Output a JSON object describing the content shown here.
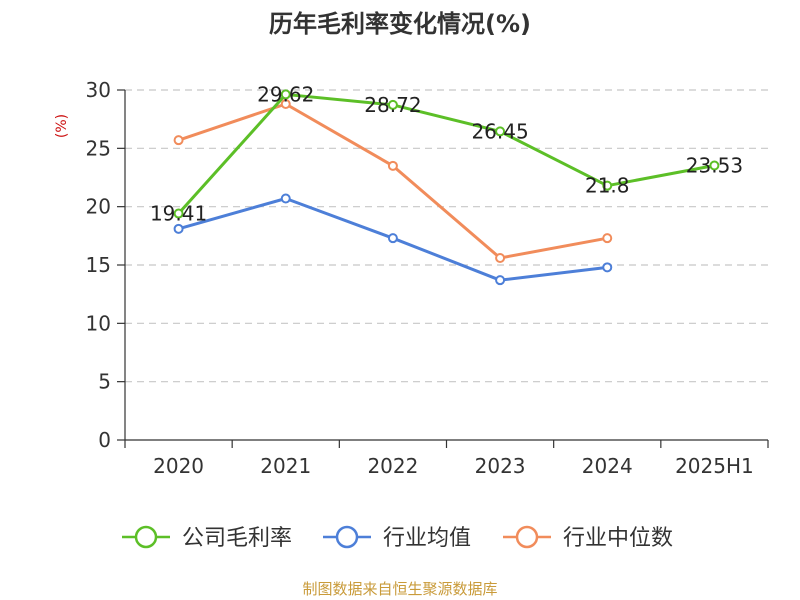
{
  "title": "历年毛利率变化情况(%)",
  "footer": "制图数据来自恒生聚源数据库",
  "chart_data": {
    "type": "line",
    "title": "历年毛利率变化情况(%)",
    "xlabel": "",
    "ylabel": "(%)",
    "categories": [
      "2020",
      "2021",
      "2022",
      "2023",
      "2024",
      "2025H1"
    ],
    "ylim": [
      0,
      30
    ],
    "yticks": [
      0,
      5,
      10,
      15,
      20,
      25,
      30
    ],
    "grid": true,
    "legend_position": "bottom",
    "series": [
      {
        "name": "公司毛利率",
        "color": "#5cbf27",
        "values": [
          19.41,
          29.62,
          28.72,
          26.45,
          21.8,
          23.53
        ],
        "labels": [
          "19.41",
          "29.62",
          "28.72",
          "26.45",
          "21.8",
          "23.53"
        ]
      },
      {
        "name": "行业均值",
        "color": "#4d7fd8",
        "values": [
          18.1,
          20.7,
          17.3,
          13.7,
          14.8,
          null
        ]
      },
      {
        "name": "行业中位数",
        "color": "#f18c5b",
        "values": [
          25.7,
          28.8,
          23.5,
          15.6,
          17.3,
          null
        ]
      }
    ]
  }
}
